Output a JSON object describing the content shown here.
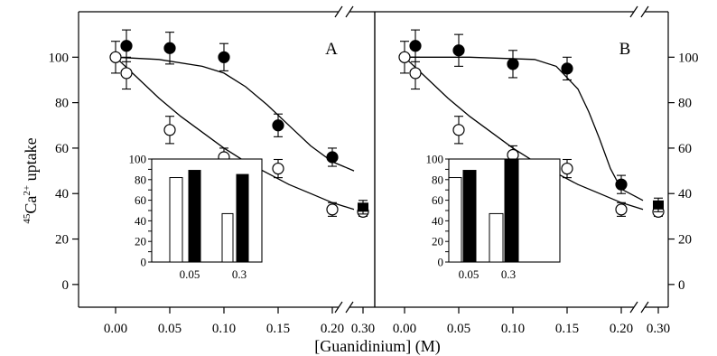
{
  "chart_data": {
    "type": "scatter",
    "xlabel": "[Guanidinium] (M)",
    "ylabel": "45Ca2+ uptake",
    "ylabel_parts": {
      "sup1": "45",
      "base": "Ca",
      "sup2": "2+",
      "rest": " uptake"
    },
    "ylim": [
      -10,
      120
    ],
    "y_ticks": [
      "0",
      "20",
      "40",
      "60",
      "80",
      "100"
    ],
    "x_ticks": [
      "0.00",
      "0.05",
      "0.10",
      "0.15",
      "0.20",
      "0.30"
    ],
    "axis_break": "between 0.20 and 0.30 on the x axis",
    "panels": [
      {
        "label": "A",
        "series": [
          {
            "marker": "open-circle",
            "points": [
              {
                "x": 0.0,
                "y": 100,
                "err": 7
              },
              {
                "x": 0.01,
                "y": 93,
                "err": 7
              },
              {
                "x": 0.05,
                "y": 68,
                "err": 6
              },
              {
                "x": 0.1,
                "y": 56,
                "err": 4
              },
              {
                "x": 0.15,
                "y": 51,
                "err": 4
              },
              {
                "x": 0.2,
                "y": 33,
                "err": 3
              },
              {
                "x": 0.3,
                "y": 32,
                "err": 2
              }
            ],
            "fit": [
              [
                0.0,
                100
              ],
              [
                0.02,
                91
              ],
              [
                0.04,
                82
              ],
              [
                0.06,
                74
              ],
              [
                0.08,
                67
              ],
              [
                0.1,
                60
              ],
              [
                0.12,
                54
              ],
              [
                0.14,
                49
              ],
              [
                0.16,
                44
              ],
              [
                0.18,
                40
              ],
              [
                0.2,
                36
              ],
              [
                0.22,
                33
              ]
            ]
          },
          {
            "marker": "filled-circle",
            "points": [
              {
                "x": 0.01,
                "y": 105,
                "err": 7
              },
              {
                "x": 0.05,
                "y": 104,
                "err": 7
              },
              {
                "x": 0.1,
                "y": 100,
                "err": 6
              },
              {
                "x": 0.15,
                "y": 70,
                "err": 5
              },
              {
                "x": 0.2,
                "y": 56,
                "err": 4
              },
              {
                "x": 0.3,
                "y": 34,
                "err": 3
              }
            ],
            "fit": [
              [
                0.0,
                100
              ],
              [
                0.04,
                99
              ],
              [
                0.08,
                96
              ],
              [
                0.1,
                93
              ],
              [
                0.12,
                87
              ],
              [
                0.14,
                79
              ],
              [
                0.16,
                70
              ],
              [
                0.18,
                61
              ],
              [
                0.2,
                54
              ],
              [
                0.22,
                50
              ]
            ]
          }
        ],
        "inset": {
          "type": "bar",
          "categories": [
            "0.05",
            "0.3"
          ],
          "y_ticks": [
            "0",
            "10",
            "20",
            "30",
            "40",
            "50",
            "60",
            "70",
            "80",
            "90",
            "100"
          ],
          "ylim": [
            0,
            100
          ],
          "series": [
            {
              "fill": "open",
              "values": [
                82,
                47
              ]
            },
            {
              "fill": "filled",
              "values": [
                89,
                85
              ]
            }
          ]
        }
      },
      {
        "label": "B",
        "series": [
          {
            "marker": "open-circle",
            "points": [
              {
                "x": 0.0,
                "y": 100,
                "err": 7
              },
              {
                "x": 0.01,
                "y": 93,
                "err": 7
              },
              {
                "x": 0.05,
                "y": 68,
                "err": 6
              },
              {
                "x": 0.1,
                "y": 57,
                "err": 4
              },
              {
                "x": 0.15,
                "y": 51,
                "err": 4
              },
              {
                "x": 0.2,
                "y": 33,
                "err": 3
              },
              {
                "x": 0.3,
                "y": 32,
                "err": 2
              }
            ],
            "fit": [
              [
                0.0,
                100
              ],
              [
                0.02,
                91
              ],
              [
                0.04,
                82
              ],
              [
                0.06,
                74
              ],
              [
                0.08,
                67
              ],
              [
                0.1,
                60
              ],
              [
                0.12,
                54
              ],
              [
                0.14,
                49
              ],
              [
                0.16,
                44
              ],
              [
                0.18,
                40
              ],
              [
                0.2,
                36
              ],
              [
                0.22,
                33
              ]
            ]
          },
          {
            "marker": "filled-circle",
            "points": [
              {
                "x": 0.01,
                "y": 105,
                "err": 7
              },
              {
                "x": 0.05,
                "y": 103,
                "err": 7
              },
              {
                "x": 0.1,
                "y": 97,
                "err": 6
              },
              {
                "x": 0.15,
                "y": 95,
                "err": 5
              },
              {
                "x": 0.2,
                "y": 44,
                "err": 4
              },
              {
                "x": 0.3,
                "y": 35,
                "err": 3
              }
            ],
            "fit": [
              [
                0.0,
                100
              ],
              [
                0.06,
                100
              ],
              [
                0.12,
                99
              ],
              [
                0.14,
                96
              ],
              [
                0.16,
                86
              ],
              [
                0.17,
                76
              ],
              [
                0.18,
                64
              ],
              [
                0.19,
                51
              ],
              [
                0.2,
                42
              ],
              [
                0.22,
                37
              ]
            ]
          }
        ],
        "inset": {
          "type": "bar",
          "categories": [
            "0.05",
            "0.3"
          ],
          "y_ticks": [
            "0",
            "10",
            "20",
            "30",
            "40",
            "50",
            "60",
            "70",
            "80",
            "90",
            "100"
          ],
          "ylim": [
            0,
            100
          ],
          "series": [
            {
              "fill": "open",
              "values": [
                82,
                47
              ]
            },
            {
              "fill": "filled",
              "values": [
                89,
                100
              ]
            }
          ]
        }
      }
    ]
  }
}
